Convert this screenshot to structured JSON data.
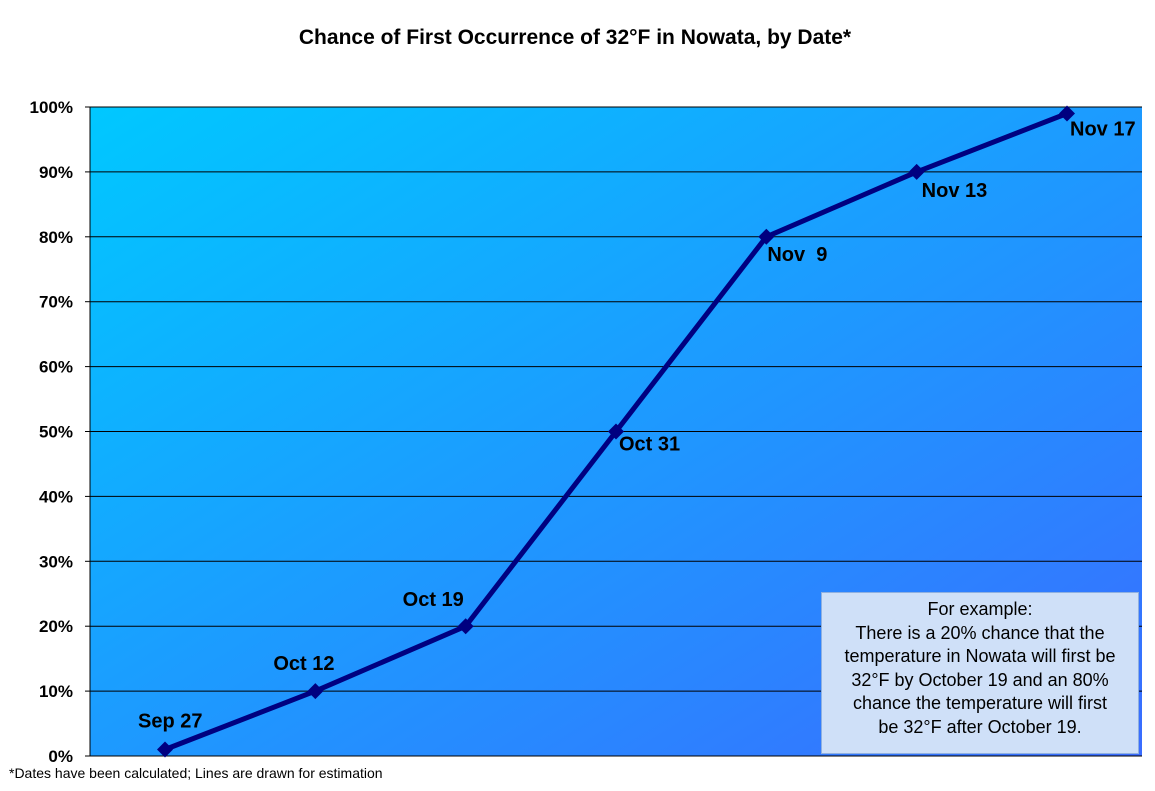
{
  "chart_data": {
    "type": "line",
    "title": "Chance of First Occurrence of 32°F in Nowata, by Date*",
    "xlabel": "",
    "ylabel": "",
    "ylim": [
      0,
      100
    ],
    "yticks": [
      "0%",
      "10%",
      "20%",
      "30%",
      "40%",
      "50%",
      "60%",
      "70%",
      "80%",
      "90%",
      "100%"
    ],
    "grid": true,
    "points": [
      {
        "label": "Sep 27",
        "y": 1
      },
      {
        "label": "Oct 12",
        "y": 10
      },
      {
        "label": "Oct 19",
        "y": 20
      },
      {
        "label": "Oct 31",
        "y": 50
      },
      {
        "label": "Nov  9",
        "y": 80
      },
      {
        "label": "Nov 13",
        "y": 90
      },
      {
        "label": "Nov 17",
        "y": 99
      }
    ],
    "line_color": "#000080",
    "background_gradient": [
      "#00c8ff",
      "#3a6cff"
    ]
  },
  "note": {
    "lines": [
      "For example:",
      "There is a 20% chance that the",
      "temperature in Nowata will first be",
      "32°F by October 19 and an 80%",
      "chance the temperature will first",
      "be 32°F after October 19."
    ]
  },
  "footnote": "*Dates have been calculated; Lines are drawn for estimation"
}
